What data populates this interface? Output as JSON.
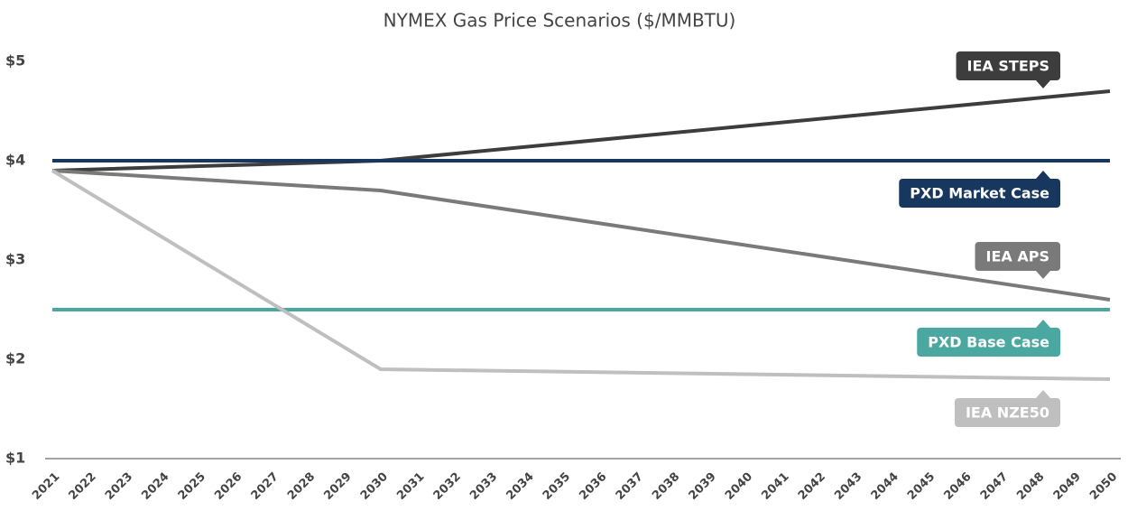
{
  "chart_data": {
    "type": "line",
    "title": "NYMEX Gas Price Scenarios ($/MMBTU)",
    "x": [
      2021,
      2030,
      2050
    ],
    "xlim": [
      2021,
      2050
    ],
    "xticks": [
      2021,
      2022,
      2023,
      2024,
      2025,
      2026,
      2027,
      2028,
      2029,
      2030,
      2031,
      2032,
      2033,
      2034,
      2035,
      2036,
      2037,
      2038,
      2039,
      2040,
      2041,
      2042,
      2043,
      2044,
      2045,
      2046,
      2047,
      2048,
      2049,
      2050
    ],
    "ylim": [
      1,
      5
    ],
    "yticks": [
      {
        "value": 1,
        "label": "$1"
      },
      {
        "value": 2,
        "label": "$2"
      },
      {
        "value": 3,
        "label": "$3"
      },
      {
        "value": 4,
        "label": "$4"
      },
      {
        "value": 5,
        "label": "$5"
      }
    ],
    "grid": false,
    "series": [
      {
        "name": "IEA STEPS",
        "color": "#3d3d3d",
        "values": [
          3.9,
          4.0,
          4.7
        ]
      },
      {
        "name": "PXD Market Case",
        "color": "#17375e",
        "values": [
          4.0,
          4.0,
          4.0
        ]
      },
      {
        "name": "IEA APS",
        "color": "#7a7a7a",
        "values": [
          3.9,
          3.7,
          2.6
        ]
      },
      {
        "name": "PXD Base Case",
        "color": "#4aa8a0",
        "values": [
          2.5,
          2.5,
          2.5
        ]
      },
      {
        "name": "IEA NZE50",
        "color": "#bfbfbf",
        "values": [
          3.9,
          1.9,
          1.8
        ]
      }
    ]
  }
}
